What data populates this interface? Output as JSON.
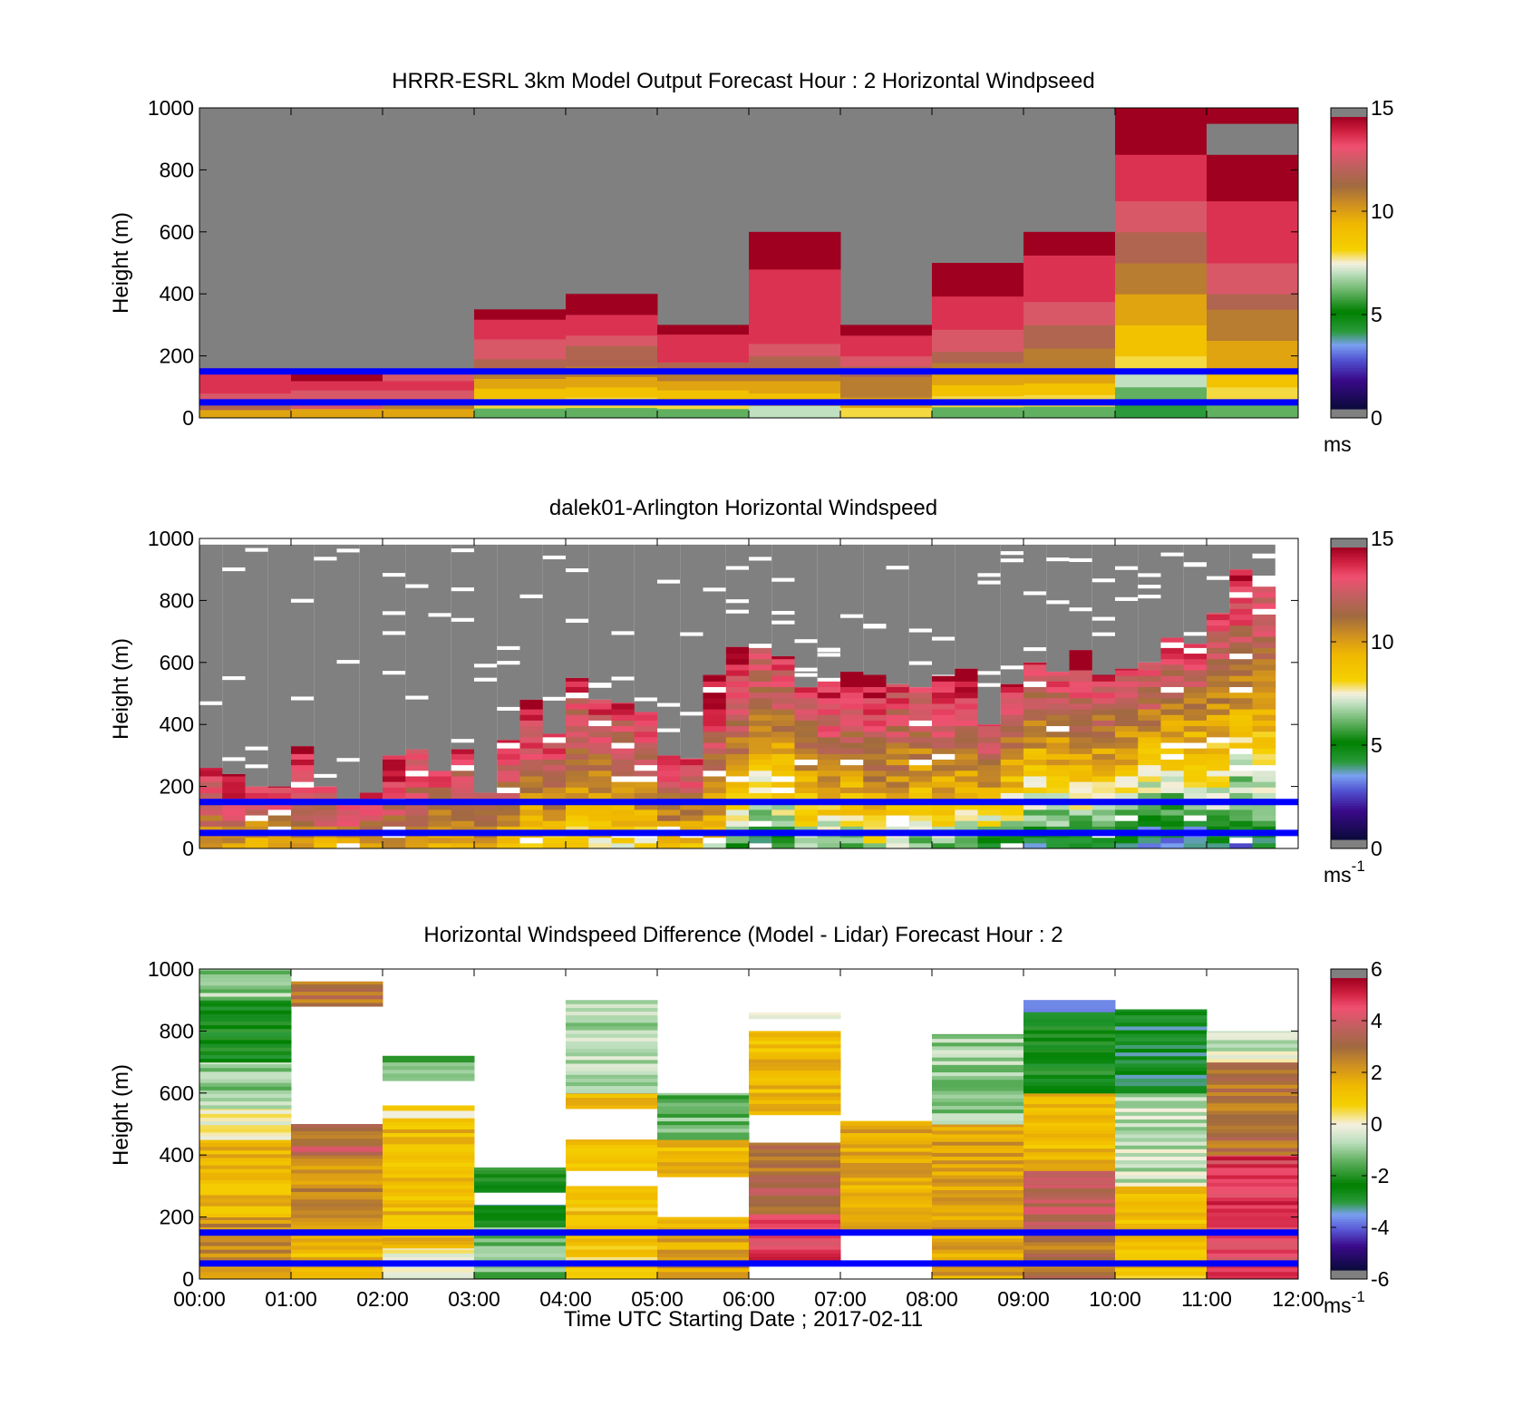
{
  "xlabel": "Time UTC  Starting Date ; 2017-02-11",
  "xticks": [
    "00:00",
    "01:00",
    "02:00",
    "03:00",
    "04:00",
    "05:00",
    "06:00",
    "07:00",
    "08:00",
    "09:00",
    "10:00",
    "11:00",
    "12:00"
  ],
  "reference_lines_m": [
    150,
    50
  ],
  "colors": {
    "missing": "#808080",
    "reference_line": "#0000ff"
  },
  "chart_data": [
    {
      "type": "heatmap",
      "title": "HRRR-ESRL 3km Model Output   Forecast Hour : 2 Horizontal Windpseed",
      "ylabel": "Height (m)",
      "yticks": [
        "0",
        "200",
        "400",
        "600",
        "800",
        "1000"
      ],
      "ylim": [
        0,
        1000
      ],
      "xlim_hours": [
        0,
        12
      ],
      "colorbar": {
        "ticks": [
          "0",
          "5",
          "10",
          "15"
        ],
        "range": [
          0,
          15
        ],
        "unit": "ms",
        "unit_sup": ""
      },
      "columns": [
        {
          "x0": 0,
          "x1": 1,
          "top": 160,
          "speeds": [
            10,
            12,
            13,
            14,
            14,
            14
          ]
        },
        {
          "x0": 1,
          "x1": 2,
          "top": 150,
          "speeds": [
            10,
            13,
            13,
            14,
            15
          ]
        },
        {
          "x0": 2,
          "x1": 3,
          "top": 150,
          "speeds": [
            10,
            11,
            13,
            14,
            13
          ]
        },
        {
          "x0": 3,
          "x1": 4,
          "top": 350,
          "speeds": [
            6,
            8,
            9,
            10,
            11,
            12,
            13,
            13,
            14,
            14,
            15
          ]
        },
        {
          "x0": 4,
          "x1": 5,
          "top": 400,
          "speeds": [
            6,
            8,
            9,
            10,
            11,
            12,
            12,
            13,
            14,
            14,
            15,
            15
          ]
        },
        {
          "x0": 5,
          "x1": 6,
          "top": 300,
          "speeds": [
            6,
            8,
            9,
            10,
            11,
            12,
            14,
            14,
            14,
            15
          ]
        },
        {
          "x0": 6,
          "x1": 7,
          "top": 600,
          "speeds": [
            7,
            9,
            10,
            11,
            12,
            13,
            14,
            14,
            14,
            14,
            14,
            14,
            15,
            15,
            15
          ]
        },
        {
          "x0": 7,
          "x1": 8,
          "top": 300,
          "speeds": [
            8,
            10,
            11,
            11,
            12,
            13,
            14,
            14,
            15
          ]
        },
        {
          "x0": 8,
          "x1": 9,
          "top": 500,
          "speeds": [
            6,
            8,
            9,
            10,
            11,
            12,
            13,
            13,
            14,
            14,
            14,
            15,
            15,
            15
          ]
        },
        {
          "x0": 9,
          "x1": 10,
          "top": 600,
          "speeds": [
            6,
            8,
            9,
            10,
            11,
            11,
            12,
            12,
            13,
            13,
            14,
            14,
            14,
            14,
            15,
            15
          ]
        },
        {
          "x0": 10,
          "x1": 11,
          "top": 1000,
          "speeds": [
            4,
            6,
            7,
            8,
            9,
            9,
            10,
            10,
            11,
            11,
            12,
            12,
            13,
            13,
            14,
            14,
            14,
            15,
            15,
            15
          ]
        },
        {
          "x0": 11,
          "x1": 12,
          "top": 1000,
          "speeds": [
            6,
            8,
            9,
            10,
            10,
            11,
            11,
            12,
            13,
            13,
            14,
            14,
            14,
            14,
            15,
            15,
            15,
            null,
            null,
            15
          ]
        }
      ]
    },
    {
      "type": "heatmap",
      "title": "dalek01-Arlington  Horizontal Windspeed",
      "ylabel": "Height (m)",
      "yticks": [
        "0",
        "200",
        "400",
        "600",
        "800",
        "1000"
      ],
      "ylim": [
        0,
        1000
      ],
      "xlim_hours": [
        0,
        12
      ],
      "colorbar": {
        "ticks": [
          "0",
          "5",
          "10",
          "15"
        ],
        "range": [
          0,
          15
        ],
        "unit": "ms",
        "unit_sup": "-1"
      },
      "profiles": [
        {
          "x0": 0.0,
          "x1": 0.25,
          "top": 260,
          "low": 10,
          "high": 14
        },
        {
          "x0": 0.25,
          "x1": 0.5,
          "top": 240,
          "low": 10,
          "high": 15
        },
        {
          "x0": 0.5,
          "x1": 0.75,
          "top": 200,
          "low": 9,
          "high": 14
        },
        {
          "x0": 0.75,
          "x1": 1.0,
          "top": 200,
          "low": 10,
          "high": 14
        },
        {
          "x0": 1.0,
          "x1": 1.25,
          "top": 330,
          "low": 10,
          "high": 15
        },
        {
          "x0": 1.25,
          "x1": 1.5,
          "top": 200,
          "low": 10,
          "high": 14
        },
        {
          "x0": 1.5,
          "x1": 1.75,
          "top": 140,
          "low": 10,
          "high": 14
        },
        {
          "x0": 1.75,
          "x1": 2.0,
          "top": 180,
          "low": 10,
          "high": 14
        },
        {
          "x0": 2.0,
          "x1": 2.25,
          "top": 300,
          "low": 10,
          "high": 15
        },
        {
          "x0": 2.25,
          "x1": 2.5,
          "top": 320,
          "low": 10,
          "high": 14
        },
        {
          "x0": 2.5,
          "x1": 2.75,
          "top": 250,
          "low": 9,
          "high": 14
        },
        {
          "x0": 2.75,
          "x1": 3.0,
          "top": 320,
          "low": 9,
          "high": 14
        },
        {
          "x0": 3.0,
          "x1": 3.25,
          "top": 180,
          "low": 10,
          "high": 13
        },
        {
          "x0": 3.25,
          "x1": 3.5,
          "top": 350,
          "low": 9,
          "high": 14
        },
        {
          "x0": 3.5,
          "x1": 3.75,
          "top": 480,
          "low": 8,
          "high": 15
        },
        {
          "x0": 3.75,
          "x1": 4.0,
          "top": 370,
          "low": 8,
          "high": 14
        },
        {
          "x0": 4.0,
          "x1": 4.25,
          "top": 550,
          "low": 8,
          "high": 14
        },
        {
          "x0": 4.25,
          "x1": 4.5,
          "top": 480,
          "low": 8,
          "high": 14
        },
        {
          "x0": 4.5,
          "x1": 4.75,
          "top": 470,
          "low": 8,
          "high": 14
        },
        {
          "x0": 4.75,
          "x1": 5.0,
          "top": 440,
          "low": 8,
          "high": 14
        },
        {
          "x0": 5.0,
          "x1": 5.25,
          "top": 300,
          "low": 9,
          "high": 14
        },
        {
          "x0": 5.25,
          "x1": 5.5,
          "top": 290,
          "low": 9,
          "high": 14
        },
        {
          "x0": 5.5,
          "x1": 5.75,
          "top": 560,
          "low": 8,
          "high": 15
        },
        {
          "x0": 5.75,
          "x1": 6.0,
          "top": 650,
          "low": 6,
          "high": 15
        },
        {
          "x0": 6.0,
          "x1": 6.25,
          "top": 660,
          "low": 4,
          "high": 14
        },
        {
          "x0": 6.25,
          "x1": 6.5,
          "top": 620,
          "low": 5,
          "high": 14
        },
        {
          "x0": 6.5,
          "x1": 6.75,
          "top": 520,
          "low": 6,
          "high": 14
        },
        {
          "x0": 6.75,
          "x1": 7.0,
          "top": 550,
          "low": 6,
          "high": 15
        },
        {
          "x0": 7.0,
          "x1": 7.25,
          "top": 570,
          "low": 6,
          "high": 15
        },
        {
          "x0": 7.25,
          "x1": 7.5,
          "top": 560,
          "low": 7,
          "high": 15
        },
        {
          "x0": 7.5,
          "x1": 7.75,
          "top": 530,
          "low": 7,
          "high": 14
        },
        {
          "x0": 7.75,
          "x1": 8.0,
          "top": 520,
          "low": 6,
          "high": 14
        },
        {
          "x0": 8.0,
          "x1": 8.25,
          "top": 560,
          "low": 6,
          "high": 15
        },
        {
          "x0": 8.25,
          "x1": 8.5,
          "top": 580,
          "low": 6,
          "high": 15
        },
        {
          "x0": 8.5,
          "x1": 8.75,
          "top": 400,
          "low": 5,
          "high": 14
        },
        {
          "x0": 8.75,
          "x1": 9.0,
          "top": 530,
          "low": 5,
          "high": 14
        },
        {
          "x0": 9.0,
          "x1": 9.25,
          "top": 600,
          "low": 4,
          "high": 14
        },
        {
          "x0": 9.25,
          "x1": 9.5,
          "top": 570,
          "low": 4,
          "high": 14
        },
        {
          "x0": 9.5,
          "x1": 9.75,
          "top": 640,
          "low": 4,
          "high": 15
        },
        {
          "x0": 9.75,
          "x1": 10.0,
          "top": 560,
          "low": 4,
          "high": 14
        },
        {
          "x0": 10.0,
          "x1": 10.25,
          "top": 580,
          "low": 4,
          "high": 14
        },
        {
          "x0": 10.25,
          "x1": 10.5,
          "top": 600,
          "low": 3,
          "high": 14
        },
        {
          "x0": 10.5,
          "x1": 10.75,
          "top": 680,
          "low": 3,
          "high": 14
        },
        {
          "x0": 10.75,
          "x1": 11.0,
          "top": 660,
          "low": 3,
          "high": 14
        },
        {
          "x0": 11.0,
          "x1": 11.25,
          "top": 760,
          "low": 4,
          "high": 14
        },
        {
          "x0": 11.25,
          "x1": 11.5,
          "top": 900,
          "low": 3,
          "high": 15
        },
        {
          "x0": 11.5,
          "x1": 11.75,
          "top": 880,
          "low": 4,
          "high": 14
        }
      ]
    },
    {
      "type": "heatmap",
      "title": "Horizontal Windspeed Difference (Model - Lidar) Forecast Hour : 2",
      "ylabel": "Height (m)",
      "yticks": [
        "0",
        "200",
        "400",
        "600",
        "800",
        "1000"
      ],
      "ylim": [
        0,
        1000
      ],
      "xlim_hours": [
        0,
        12
      ],
      "colorbar": {
        "ticks": [
          "-6",
          "-4",
          "-2",
          "0",
          "2",
          "4",
          "6"
        ],
        "range": [
          -6,
          6
        ],
        "unit": "ms",
        "unit_sup": "-1"
      },
      "columns": [
        {
          "x0": 0,
          "x1": 1,
          "top": 1000,
          "segments": [
            [
              0,
              200,
              2.5
            ],
            [
              200,
              450,
              1.5
            ],
            [
              450,
              550,
              0
            ],
            [
              550,
              700,
              -1
            ],
            [
              700,
              900,
              -2.5
            ],
            [
              900,
              1000,
              -1
            ]
          ]
        },
        {
          "x0": 1,
          "x1": 2,
          "top": 960,
          "segments": [
            [
              0,
              150,
              1.5
            ],
            [
              150,
              400,
              2.5
            ],
            [
              400,
              430,
              4
            ],
            [
              430,
              500,
              3
            ],
            [
              880,
              960,
              3
            ]
          ]
        },
        {
          "x0": 2,
          "x1": 3,
          "top": 720,
          "segments": [
            [
              0,
              100,
              0
            ],
            [
              100,
              520,
              1.5
            ],
            [
              520,
              560,
              0.5
            ],
            [
              640,
              720,
              -1.5
            ]
          ]
        },
        {
          "x0": 3,
          "x1": 4,
          "top": 360,
          "segments": [
            [
              0,
              190,
              -1.5
            ],
            [
              190,
              240,
              -3
            ],
            [
              280,
              360,
              -2.5
            ]
          ]
        },
        {
          "x0": 4,
          "x1": 5,
          "top": 900,
          "segments": [
            [
              0,
              160,
              1
            ],
            [
              160,
              300,
              1.2
            ],
            [
              350,
              450,
              1.5
            ],
            [
              550,
              600,
              1.8
            ],
            [
              600,
              900,
              -0.8
            ]
          ]
        },
        {
          "x0": 5,
          "x1": 6,
          "top": 600,
          "segments": [
            [
              0,
              200,
              2
            ],
            [
              330,
              450,
              1.5
            ],
            [
              450,
              600,
              -1.5
            ]
          ]
        },
        {
          "x0": 6,
          "x1": 7,
          "top": 860,
          "segments": [
            [
              60,
              210,
              5
            ],
            [
              210,
              300,
              3.5
            ],
            [
              300,
              440,
              3
            ],
            [
              530,
              800,
              1.5
            ],
            [
              840,
              860,
              -0.5
            ]
          ]
        },
        {
          "x0": 7,
          "x1": 8,
          "top": 510,
          "segments": [
            [
              160,
              510,
              1.8
            ]
          ]
        },
        {
          "x0": 8,
          "x1": 9,
          "top": 790,
          "segments": [
            [
              0,
              500,
              2
            ],
            [
              500,
              790,
              -1
            ]
          ]
        },
        {
          "x0": 9,
          "x1": 10,
          "top": 900,
          "segments": [
            [
              0,
              150,
              3
            ],
            [
              150,
              350,
              4
            ],
            [
              350,
              600,
              1.5
            ],
            [
              600,
              850,
              -2.5
            ],
            [
              850,
              900,
              -3.5
            ]
          ]
        },
        {
          "x0": 10,
          "x1": 11,
          "top": 870,
          "segments": [
            [
              0,
              300,
              1.2
            ],
            [
              300,
              600,
              -0.6
            ],
            [
              600,
              870,
              -3
            ]
          ]
        },
        {
          "x0": 11,
          "x1": 12,
          "top": 800,
          "segments": [
            [
              0,
              400,
              5
            ],
            [
              400,
              700,
              3
            ],
            [
              700,
              800,
              -0.5
            ]
          ]
        }
      ]
    }
  ]
}
